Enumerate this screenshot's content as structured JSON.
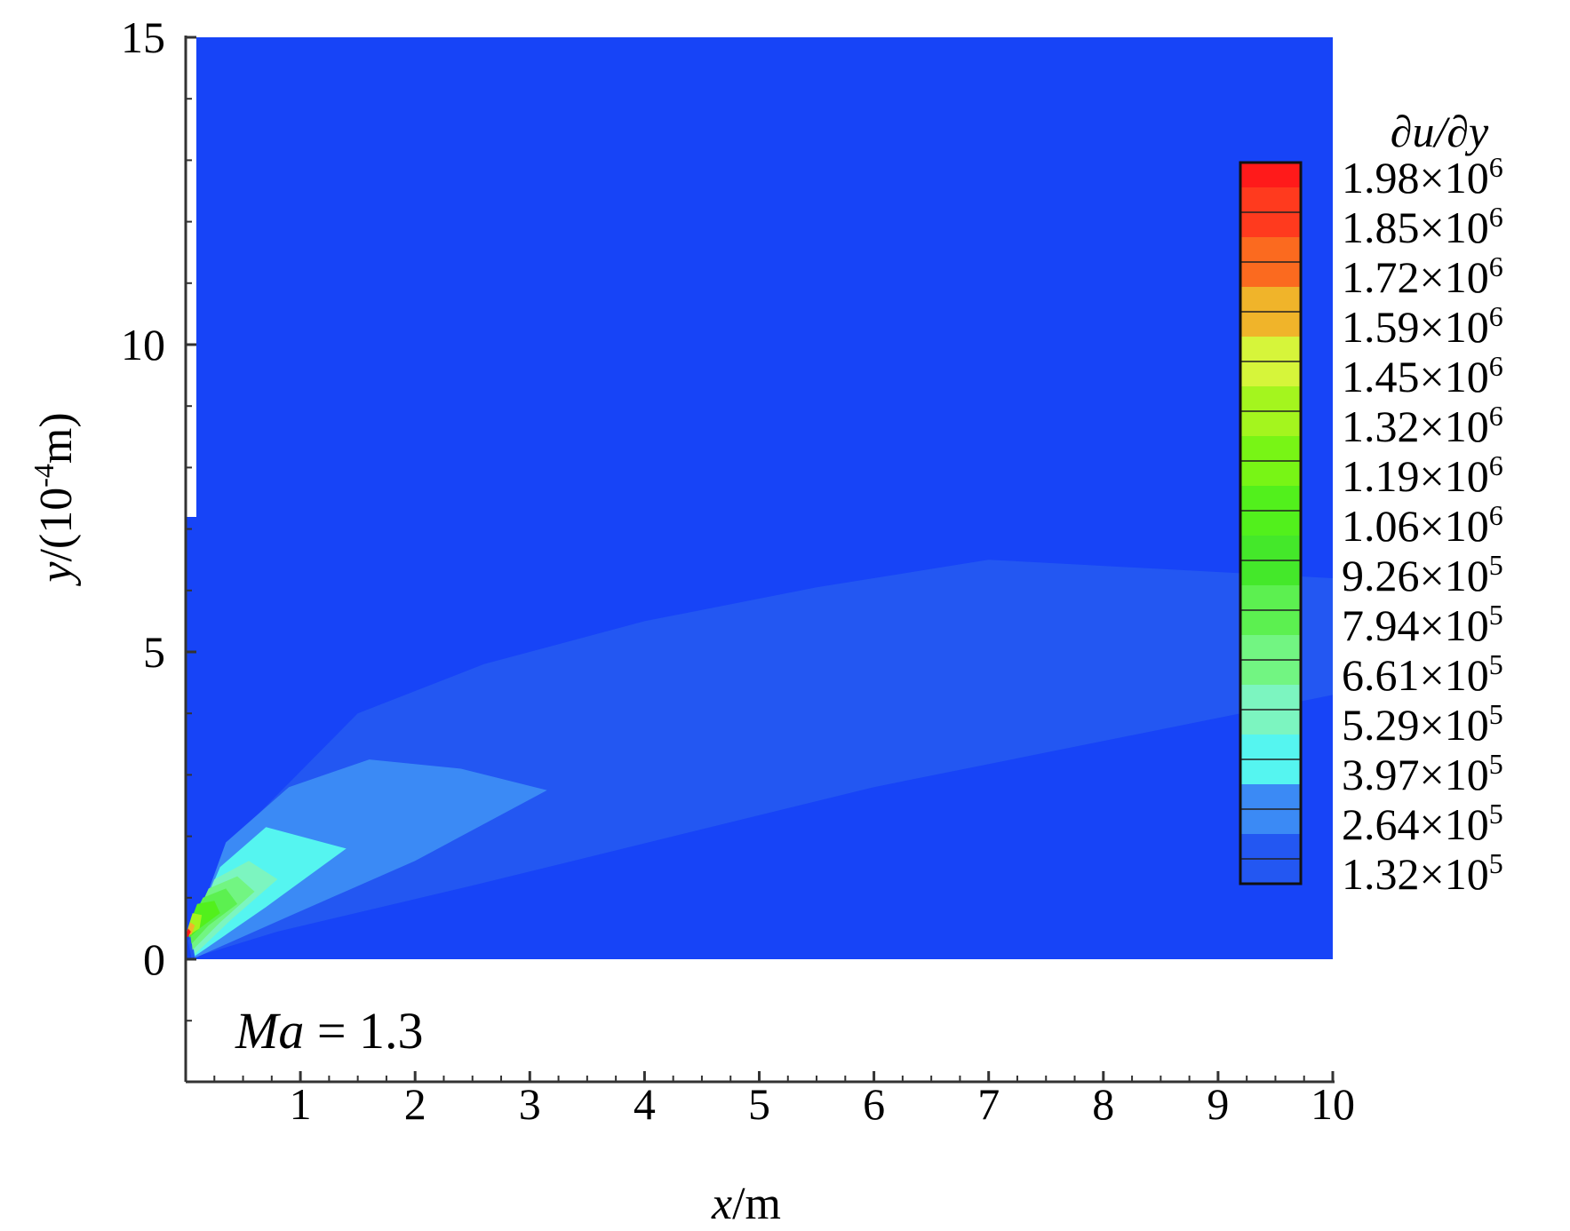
{
  "chart_data": {
    "type": "contour",
    "annotation": {
      "text": "Ma = 1.3",
      "var": "Ma",
      "rest": " = 1.3"
    },
    "xlabel": {
      "var": "x",
      "unit": "/m"
    },
    "ylabel": {
      "var": "y",
      "pre": "/(10",
      "exp": "-4",
      "post": "m)"
    },
    "xlim": [
      0,
      10
    ],
    "ylim": [
      -2,
      15
    ],
    "x_ticks": [
      1,
      2,
      3,
      4,
      5,
      6,
      7,
      8,
      9,
      10
    ],
    "y_ticks": [
      0,
      5,
      10,
      15
    ],
    "colorbar": {
      "title": "∂u/∂y",
      "levels": [
        {
          "mantissa": "1.98",
          "exp": "6",
          "color": "#ff1a1a"
        },
        {
          "mantissa": "1.85",
          "exp": "6",
          "color": "#ff3a1e"
        },
        {
          "mantissa": "1.72",
          "exp": "6",
          "color": "#fb6a1f"
        },
        {
          "mantissa": "1.59",
          "exp": "6",
          "color": "#f0b42a"
        },
        {
          "mantissa": "1.45",
          "exp": "6",
          "color": "#d6f53a"
        },
        {
          "mantissa": "1.32",
          "exp": "6",
          "color": "#a4f51e"
        },
        {
          "mantissa": "1.19",
          "exp": "6",
          "color": "#78f515"
        },
        {
          "mantissa": "1.06",
          "exp": "6",
          "color": "#52f01c"
        },
        {
          "mantissa": "9.26",
          "exp": "5",
          "color": "#44e82a"
        },
        {
          "mantissa": "7.94",
          "exp": "5",
          "color": "#5cf050"
        },
        {
          "mantissa": "6.61",
          "exp": "5",
          "color": "#72f582"
        },
        {
          "mantissa": "5.29",
          "exp": "5",
          "color": "#7cf5c0"
        },
        {
          "mantissa": "3.97",
          "exp": "5",
          "color": "#55f5f0"
        },
        {
          "mantissa": "2.64",
          "exp": "5",
          "color": "#3b8af5"
        },
        {
          "mantissa": "1.32",
          "exp": "5",
          "color": "#2357f2"
        }
      ],
      "background_color": "#1744f7"
    },
    "regions": [
      {
        "level_index": 14,
        "points": [
          [
            0.02,
            0.3
          ],
          [
            0.6,
            2.3
          ],
          [
            1.5,
            4.0
          ],
          [
            2.6,
            4.8
          ],
          [
            4.0,
            5.5
          ],
          [
            5.5,
            6.05
          ],
          [
            7.0,
            6.5
          ],
          [
            10.0,
            6.2
          ],
          [
            10.0,
            4.3
          ],
          [
            6.0,
            2.8
          ],
          [
            2.5,
            1.2
          ],
          [
            0.8,
            0.45
          ],
          [
            0.05,
            0.02
          ]
        ]
      },
      {
        "level_index": 13,
        "points": [
          [
            0.05,
            0.35
          ],
          [
            0.35,
            1.9
          ],
          [
            0.9,
            2.8
          ],
          [
            1.6,
            3.25
          ],
          [
            2.4,
            3.1
          ],
          [
            3.15,
            2.75
          ],
          [
            2.0,
            1.6
          ],
          [
            0.9,
            0.7
          ],
          [
            0.08,
            0.02
          ]
        ]
      },
      {
        "level_index": 12,
        "points": [
          [
            0.05,
            0.4
          ],
          [
            0.3,
            1.5
          ],
          [
            0.7,
            2.15
          ],
          [
            1.4,
            1.8
          ],
          [
            0.7,
            0.85
          ],
          [
            0.08,
            0.05
          ]
        ]
      },
      {
        "level_index": 11,
        "points": [
          [
            0.05,
            0.4
          ],
          [
            0.25,
            1.3
          ],
          [
            0.55,
            1.6
          ],
          [
            0.8,
            1.3
          ],
          [
            0.4,
            0.65
          ],
          [
            0.08,
            0.08
          ]
        ]
      },
      {
        "level_index": 10,
        "points": [
          [
            0.04,
            0.5
          ],
          [
            0.2,
            1.15
          ],
          [
            0.45,
            1.35
          ],
          [
            0.6,
            1.1
          ],
          [
            0.3,
            0.6
          ],
          [
            0.06,
            0.15
          ]
        ]
      },
      {
        "level_index": 9,
        "points": [
          [
            0.03,
            0.55
          ],
          [
            0.15,
            1.0
          ],
          [
            0.35,
            1.15
          ],
          [
            0.45,
            0.9
          ],
          [
            0.2,
            0.55
          ],
          [
            0.05,
            0.25
          ]
        ]
      },
      {
        "level_index": 7,
        "points": [
          [
            0.02,
            0.5
          ],
          [
            0.1,
            0.9
          ],
          [
            0.25,
            0.95
          ],
          [
            0.3,
            0.75
          ],
          [
            0.12,
            0.5
          ],
          [
            0.03,
            0.35
          ]
        ]
      },
      {
        "level_index": 5,
        "points": [
          [
            0.01,
            0.45
          ],
          [
            0.06,
            0.75
          ],
          [
            0.14,
            0.72
          ],
          [
            0.12,
            0.5
          ],
          [
            0.02,
            0.38
          ]
        ]
      },
      {
        "level_index": 3,
        "points": [
          [
            0.005,
            0.4
          ],
          [
            0.04,
            0.6
          ],
          [
            0.08,
            0.55
          ],
          [
            0.05,
            0.4
          ]
        ]
      },
      {
        "level_index": 0,
        "points": [
          [
            0.0,
            0.38
          ],
          [
            0.02,
            0.5
          ],
          [
            0.045,
            0.45
          ],
          [
            0.02,
            0.36
          ]
        ]
      }
    ]
  }
}
